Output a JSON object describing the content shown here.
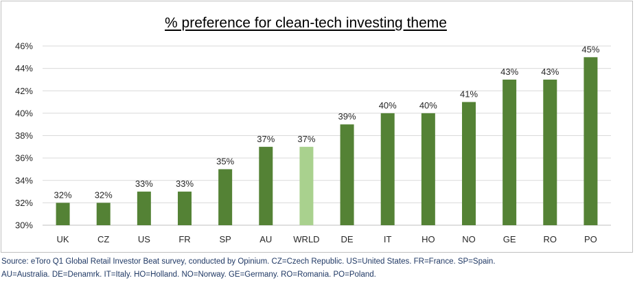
{
  "chart_data": {
    "type": "bar",
    "title": "% preference for clean-tech investing theme",
    "categories": [
      "UK",
      "CZ",
      "US",
      "FR",
      "SP",
      "AU",
      "WRLD",
      "DE",
      "IT",
      "HO",
      "NO",
      "GE",
      "RO",
      "PO"
    ],
    "values": [
      32,
      32,
      33,
      33,
      35,
      37,
      37,
      39,
      40,
      40,
      41,
      43,
      43,
      45
    ],
    "data_labels": [
      "32%",
      "32%",
      "33%",
      "33%",
      "35%",
      "37%",
      "37%",
      "39%",
      "40%",
      "40%",
      "41%",
      "43%",
      "43%",
      "45%"
    ],
    "ylim": [
      30,
      46
    ],
    "yticks": [
      30,
      32,
      34,
      36,
      38,
      40,
      42,
      44,
      46
    ],
    "ytick_labels": [
      "30%",
      "32%",
      "34%",
      "36%",
      "38%",
      "40%",
      "42%",
      "44%",
      "46%"
    ],
    "xlabel": "",
    "ylabel": "",
    "grid": true,
    "legend": false,
    "colors": {
      "bar": "#548235",
      "highlight": "#a9d18e",
      "highlight_category": "WRLD",
      "grid": "#d9d9d9"
    }
  },
  "source_note": {
    "line1": "Source: eToro Q1 Global Retail Investor Beat survey, conducted by Opinium. CZ=Czech Republic. US=United States. FR=France. SP=Spain.",
    "line2": "AU=Australia. DE=Denamrk. IT=Italy. HO=Holland. NO=Norway. GE=Germany. RO=Romania. PO=Poland."
  }
}
